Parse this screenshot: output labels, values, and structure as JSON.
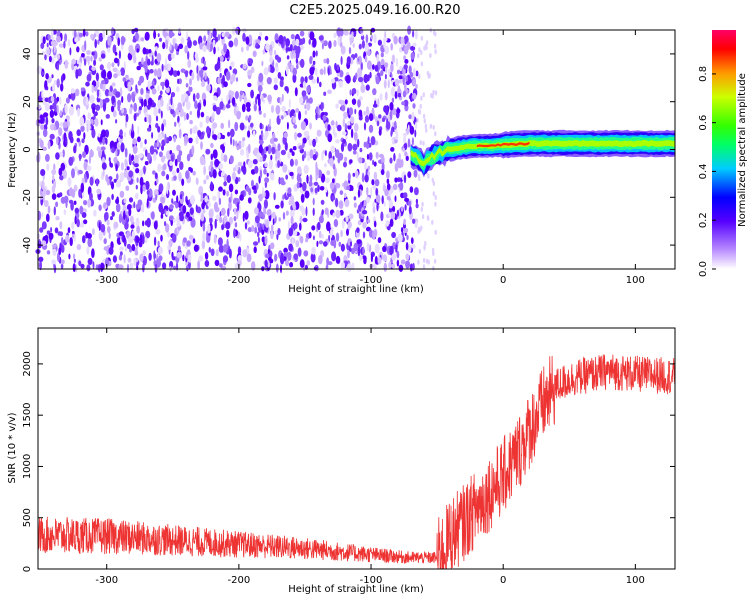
{
  "title": "C2E5.2025.049.16.00.R20",
  "chart_data": [
    {
      "type": "heatmap",
      "xlabel": "Height of straight line (km)",
      "ylabel": "Frequency (Hz)",
      "xlim": [
        -352,
        130
      ],
      "ylim": [
        -50,
        50
      ],
      "xticks": [
        -300,
        -200,
        -100,
        0,
        100
      ],
      "yticks": [
        -40,
        -20,
        0,
        20,
        40
      ],
      "noise_region": [
        -352,
        -65
      ],
      "signal_region": [
        -70,
        130
      ],
      "signal_track": {
        "x": [
          -70,
          -65,
          -60,
          -55,
          -50,
          -45,
          -40,
          -30,
          -20,
          -10,
          0,
          20,
          50,
          80,
          100,
          130
        ],
        "freq": [
          -1,
          -4,
          -6,
          -3,
          -2,
          -1,
          0,
          1,
          1.5,
          1.5,
          2,
          2.5,
          2.5,
          2.5,
          2.5,
          2.5
        ]
      },
      "colorbar": {
        "label": "Normalized spectral amplitude",
        "range": [
          0,
          0.98
        ],
        "ticks": [
          0.0,
          0.2,
          0.4,
          0.6,
          0.8
        ]
      }
    },
    {
      "type": "line",
      "xlabel": "Height of straight line (km)",
      "ylabel": "SNR (10 * v/v)",
      "xlim": [
        -352,
        130
      ],
      "ylim": [
        0,
        2350
      ],
      "xticks": [
        -300,
        -200,
        -100,
        0,
        100
      ],
      "yticks": [
        0,
        500,
        1000,
        1500,
        2000
      ],
      "color": "#ee3333",
      "trend": {
        "x": [
          -352,
          -300,
          -250,
          -200,
          -150,
          -100,
          -70,
          -50,
          -45,
          -40,
          -30,
          -20,
          -10,
          0,
          10,
          20,
          30,
          40,
          50,
          60,
          80,
          100,
          130
        ],
        "y": [
          330,
          320,
          280,
          240,
          200,
          140,
          110,
          110,
          200,
          320,
          450,
          600,
          750,
          900,
          1100,
          1350,
          1600,
          1780,
          1850,
          1880,
          1930,
          1900,
          1880
        ]
      }
    }
  ]
}
